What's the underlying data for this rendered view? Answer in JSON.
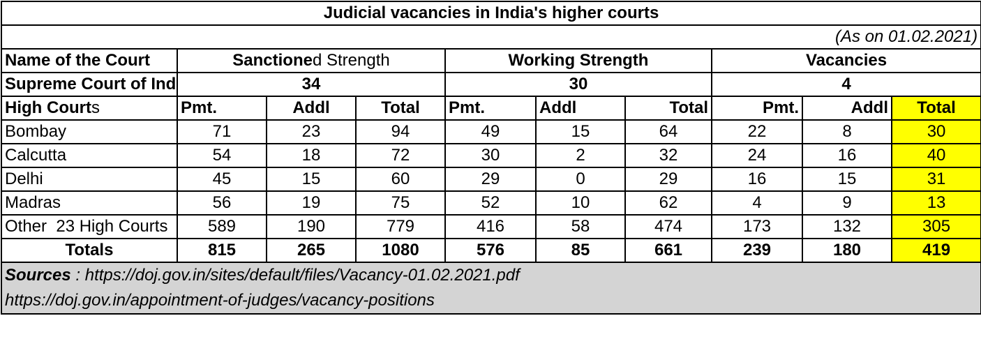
{
  "title": "Judicial vacancies in India's higher courts",
  "as_on": "(As on 01.02.2021)",
  "header": {
    "name_col": "Name of the Court",
    "sanctioned_bold": "Sanctione",
    "sanctioned_rest": "d Strength",
    "working": "Working Strength",
    "vacancies": "Vacancies"
  },
  "supreme": {
    "name": "Supreme Court of Ind",
    "sanctioned": "34",
    "working": "30",
    "vacancies": "4"
  },
  "subheader": {
    "name_bold": "High Court",
    "name_rest": "s",
    "cols": [
      "Pmt.",
      "Addl",
      "Total",
      "Pmt.",
      "Addl",
      "Total",
      "Pmt.",
      "Addl",
      "Total"
    ]
  },
  "rows": [
    {
      "name": "Bombay",
      "values": [
        "71",
        "23",
        "94",
        "49",
        "15",
        "64",
        "22",
        "8",
        "30"
      ]
    },
    {
      "name": "Calcutta",
      "values": [
        "54",
        "18",
        "72",
        "30",
        "2",
        "32",
        "24",
        "16",
        "40"
      ]
    },
    {
      "name": "Delhi",
      "values": [
        "45",
        "15",
        "60",
        "29",
        "0",
        "29",
        "16",
        "15",
        "31"
      ]
    },
    {
      "name": "Madras",
      "values": [
        "56",
        "19",
        "75",
        "52",
        "10",
        "62",
        "4",
        "9",
        "13"
      ]
    },
    {
      "name": "Other  23 High Courts",
      "values": [
        "589",
        "190",
        "779",
        "416",
        "58",
        "474",
        "173",
        "132",
        "305"
      ]
    }
  ],
  "totals": {
    "name": "Totals",
    "values": [
      "815",
      "265",
      "1080",
      "576",
      "85",
      "661",
      "239",
      "180",
      "419"
    ]
  },
  "sources": {
    "label": "Sources",
    "sep": " : ",
    "line1": "https://doj.gov.in/sites/default/files/Vacancy-01.02.2021.pdf",
    "line2": "https://doj.gov.in/appointment-of-judges/vacancy-positions"
  },
  "colors": {
    "highlight": "#ffff00",
    "sources_bg": "#d4d4d4"
  }
}
